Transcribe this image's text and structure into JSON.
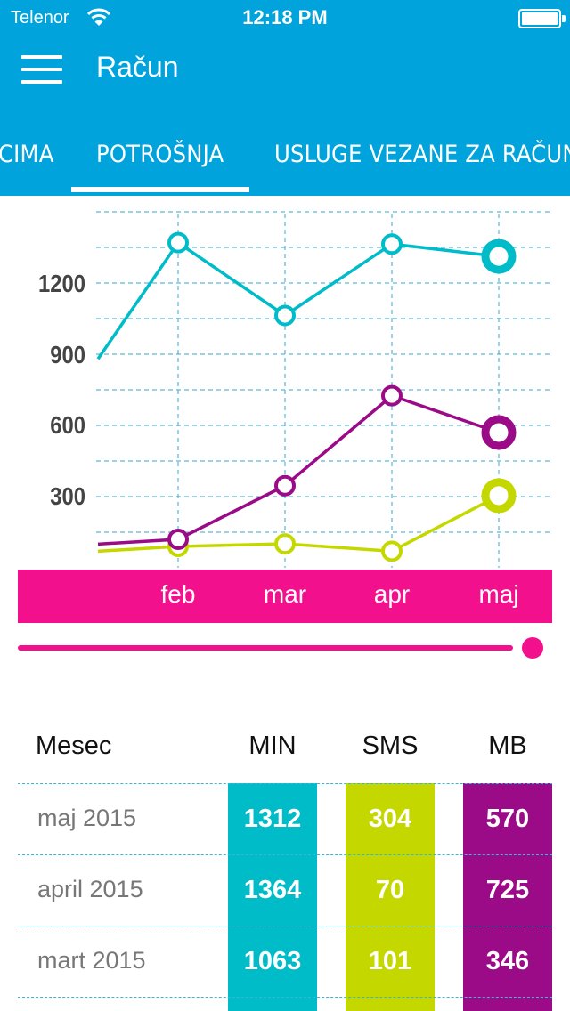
{
  "status_bar": {
    "carrier": "Telenor",
    "time": "12:18 PM"
  },
  "header": {
    "title": "Račun"
  },
  "tabs": [
    {
      "label": "CIMA"
    },
    {
      "label": "POTROŠNJA",
      "selected": true
    },
    {
      "label": "USLUGE VEZANE ZA RAČUN"
    }
  ],
  "colors": {
    "header": "#00a3dc",
    "accent": "#f2108c",
    "min": "#00bcc9",
    "sms": "#c4d800",
    "mb": "#9b0a87"
  },
  "chart_data": {
    "type": "line",
    "categories": [
      "",
      "feb",
      "mar",
      "apr",
      "maj"
    ],
    "y_ticks": [
      "300",
      "600",
      "900",
      "1200"
    ],
    "ylim": [
      0,
      1500
    ],
    "grid": true,
    "series": [
      {
        "key": "min",
        "values": [
          880,
          1370,
          1063,
          1364,
          1312
        ]
      },
      {
        "key": "sms",
        "values": [
          70,
          90,
          101,
          70,
          304
        ]
      },
      {
        "key": "mb",
        "values": [
          100,
          120,
          346,
          725,
          570
        ]
      }
    ]
  },
  "slider": {
    "value": 1.0
  },
  "table": {
    "headers": {
      "month": "Mesec",
      "min": "MIN",
      "sms": "SMS",
      "mb": "MB"
    },
    "rows": [
      {
        "month": "maj 2015",
        "min": "1312",
        "sms": "304",
        "mb": "570"
      },
      {
        "month": "april 2015",
        "min": "1364",
        "sms": "70",
        "mb": "725"
      },
      {
        "month": "mart 2015",
        "min": "1063",
        "sms": "101",
        "mb": "346"
      }
    ]
  }
}
